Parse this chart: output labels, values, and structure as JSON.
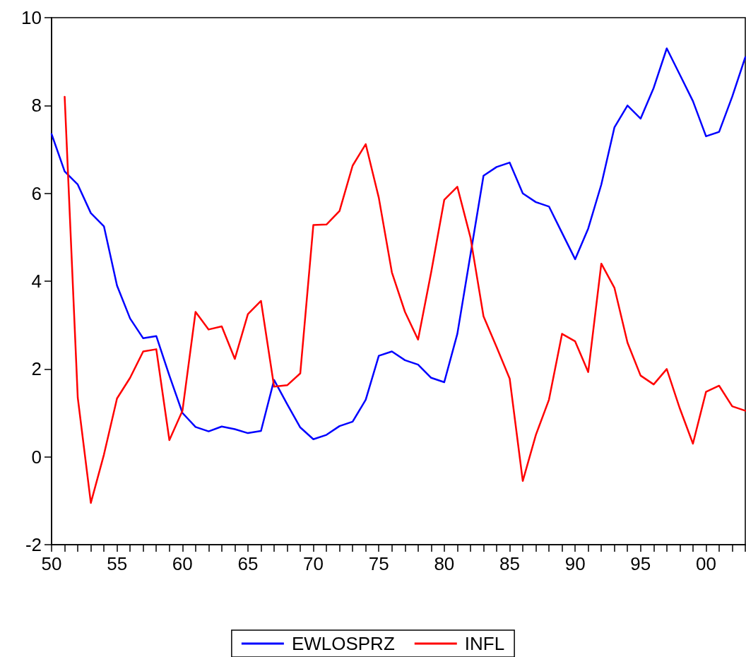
{
  "chart_data": {
    "type": "line",
    "x": [
      1950,
      1951,
      1952,
      1953,
      1954,
      1955,
      1956,
      1957,
      1958,
      1959,
      1960,
      1961,
      1962,
      1963,
      1964,
      1965,
      1966,
      1967,
      1968,
      1969,
      1970,
      1971,
      1972,
      1973,
      1974,
      1975,
      1976,
      1977,
      1978,
      1979,
      1980,
      1981,
      1982,
      1983,
      1984,
      1985,
      1986,
      1987,
      1988,
      1989,
      1990,
      1991,
      1992,
      1993,
      1994,
      1995,
      1996,
      1997,
      1998,
      1999,
      2000,
      2001,
      2002,
      2003
    ],
    "series": [
      {
        "name": "EWLOSPRZ",
        "color": "#0000ff",
        "values": [
          7.35,
          6.5,
          6.2,
          5.55,
          5.25,
          3.9,
          3.15,
          2.7,
          2.75,
          1.85,
          1.0,
          0.68,
          0.58,
          0.69,
          0.63,
          0.54,
          0.59,
          1.75,
          1.2,
          0.67,
          0.4,
          0.5,
          0.7,
          0.8,
          1.3,
          2.3,
          2.4,
          2.2,
          2.1,
          1.8,
          1.7,
          2.8,
          4.6,
          6.4,
          6.6,
          6.7,
          6.0,
          5.8,
          5.7,
          5.1,
          4.5,
          5.2,
          6.2,
          7.5,
          8.0,
          7.7,
          8.4,
          9.3,
          8.7,
          8.1,
          7.3,
          7.4,
          8.2,
          9.1
        ]
      },
      {
        "name": "INFL",
        "color": "#ff0000",
        "values": [
          null,
          8.2,
          1.35,
          -1.05,
          0.05,
          1.33,
          1.8,
          2.4,
          2.45,
          0.38,
          1.05,
          3.3,
          2.9,
          2.97,
          2.23,
          3.25,
          3.55,
          1.6,
          1.63,
          1.9,
          5.28,
          5.29,
          5.6,
          6.63,
          7.12,
          5.9,
          4.2,
          3.3,
          2.67,
          4.2,
          5.85,
          6.15,
          5.0,
          3.2,
          2.5,
          1.78,
          -0.55,
          0.5,
          1.3,
          2.8,
          2.63,
          1.93,
          4.4,
          3.85,
          2.6,
          1.85,
          1.65,
          2.0,
          1.1,
          0.3,
          1.48,
          1.62,
          1.15,
          1.05
        ]
      }
    ],
    "xlim": [
      1950,
      2003
    ],
    "xticks": [
      {
        "value": 1950,
        "label": "50"
      },
      {
        "value": 1951,
        "label": null
      },
      {
        "value": 1952,
        "label": null
      },
      {
        "value": 1953,
        "label": null
      },
      {
        "value": 1954,
        "label": null
      },
      {
        "value": 1955,
        "label": "55"
      },
      {
        "value": 1956,
        "label": null
      },
      {
        "value": 1957,
        "label": null
      },
      {
        "value": 1958,
        "label": null
      },
      {
        "value": 1959,
        "label": null
      },
      {
        "value": 1960,
        "label": "60"
      },
      {
        "value": 1961,
        "label": null
      },
      {
        "value": 1962,
        "label": null
      },
      {
        "value": 1963,
        "label": null
      },
      {
        "value": 1964,
        "label": null
      },
      {
        "value": 1965,
        "label": "65"
      },
      {
        "value": 1966,
        "label": null
      },
      {
        "value": 1967,
        "label": null
      },
      {
        "value": 1968,
        "label": null
      },
      {
        "value": 1969,
        "label": null
      },
      {
        "value": 1970,
        "label": "70"
      },
      {
        "value": 1971,
        "label": null
      },
      {
        "value": 1972,
        "label": null
      },
      {
        "value": 1973,
        "label": null
      },
      {
        "value": 1974,
        "label": null
      },
      {
        "value": 1975,
        "label": "75"
      },
      {
        "value": 1976,
        "label": null
      },
      {
        "value": 1977,
        "label": null
      },
      {
        "value": 1978,
        "label": null
      },
      {
        "value": 1979,
        "label": null
      },
      {
        "value": 1980,
        "label": "80"
      },
      {
        "value": 1981,
        "label": null
      },
      {
        "value": 1982,
        "label": null
      },
      {
        "value": 1983,
        "label": null
      },
      {
        "value": 1984,
        "label": null
      },
      {
        "value": 1985,
        "label": "85"
      },
      {
        "value": 1986,
        "label": null
      },
      {
        "value": 1987,
        "label": null
      },
      {
        "value": 1988,
        "label": null
      },
      {
        "value": 1989,
        "label": null
      },
      {
        "value": 1990,
        "label": "90"
      },
      {
        "value": 1991,
        "label": null
      },
      {
        "value": 1992,
        "label": null
      },
      {
        "value": 1993,
        "label": null
      },
      {
        "value": 1994,
        "label": null
      },
      {
        "value": 1995,
        "label": "95"
      },
      {
        "value": 1996,
        "label": null
      },
      {
        "value": 1997,
        "label": null
      },
      {
        "value": 1998,
        "label": null
      },
      {
        "value": 1999,
        "label": null
      },
      {
        "value": 2000,
        "label": "00"
      },
      {
        "value": 2001,
        "label": null
      },
      {
        "value": 2002,
        "label": null
      },
      {
        "value": 2003,
        "label": null
      }
    ],
    "ylim": [
      -2,
      10
    ],
    "yticks": [
      -2,
      0,
      2,
      4,
      6,
      8,
      10
    ],
    "grid": false,
    "legend": "bottom",
    "marker": "none",
    "line_style": "solid"
  }
}
